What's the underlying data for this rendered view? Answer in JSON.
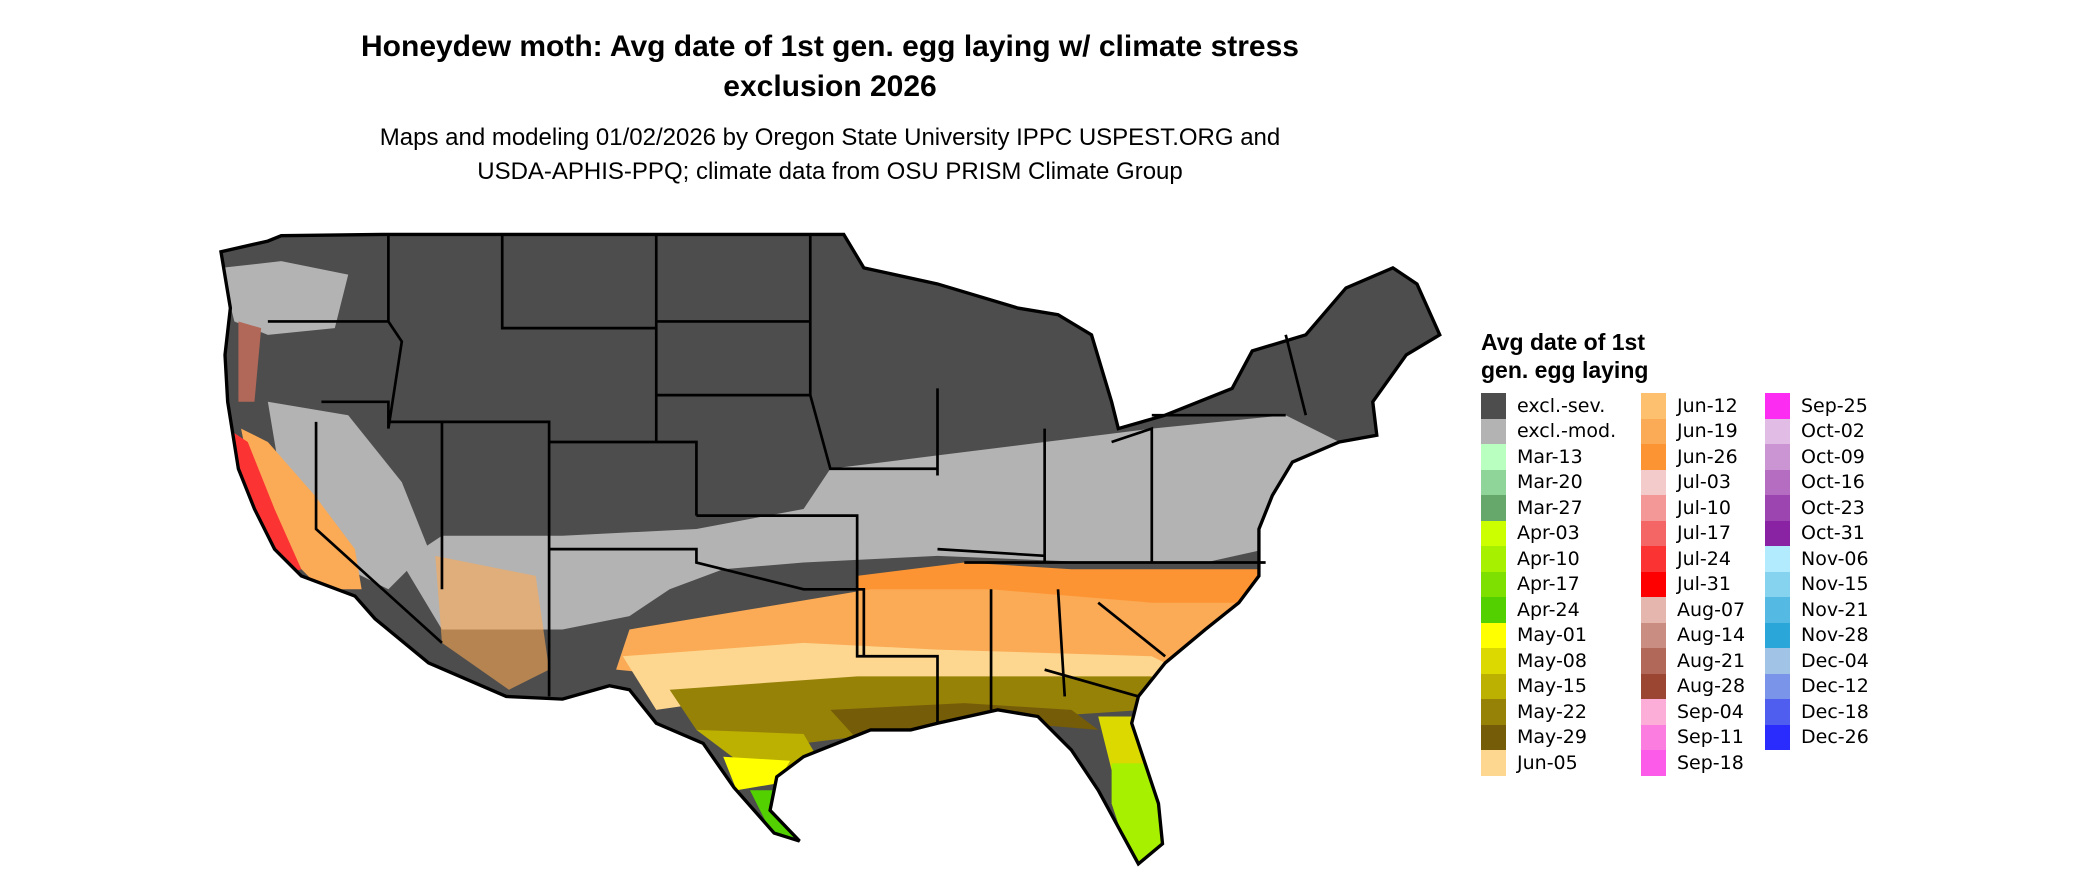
{
  "title": {
    "line1": "Honeydew moth: Avg date of 1st gen. egg laying w/ climate stress",
    "line2": "exclusion 2026"
  },
  "subtitle": {
    "line1": "Maps and modeling 01/02/2026 by Oregon State University IPPC USPEST.ORG and",
    "line2": "USDA-APHIS-PPQ; climate data from OSU PRISM Climate Group"
  },
  "legend": {
    "title_line1": "Avg date of 1st",
    "title_line2": "gen. egg laying",
    "columns": [
      [
        {
          "label": "excl.-sev.",
          "color": "#4d4d4d"
        },
        {
          "label": "excl.-mod.",
          "color": "#b3b3b3"
        },
        {
          "label": "Mar-13",
          "color": "#b8ffc0"
        },
        {
          "label": "Mar-20",
          "color": "#8fd499"
        },
        {
          "label": "Mar-27",
          "color": "#66a86b"
        },
        {
          "label": "Apr-03",
          "color": "#ccff00"
        },
        {
          "label": "Apr-10",
          "color": "#a6f000"
        },
        {
          "label": "Apr-17",
          "color": "#7ee000"
        },
        {
          "label": "Apr-24",
          "color": "#52d000"
        },
        {
          "label": "May-01",
          "color": "#ffff00"
        },
        {
          "label": "May-08",
          "color": "#dcd900"
        },
        {
          "label": "May-15",
          "color": "#bcb000"
        },
        {
          "label": "May-22",
          "color": "#978208"
        },
        {
          "label": "May-29",
          "color": "#755c08"
        },
        {
          "label": "Jun-05",
          "color": "#fdd78f"
        }
      ],
      [
        {
          "label": "Jun-12",
          "color": "#fdc06e"
        },
        {
          "label": "Jun-19",
          "color": "#fbaa55"
        },
        {
          "label": "Jun-26",
          "color": "#fc9433"
        },
        {
          "label": "Jul-03",
          "color": "#f3cbcb"
        },
        {
          "label": "Jul-10",
          "color": "#f39797"
        },
        {
          "label": "Jul-17",
          "color": "#f46666"
        },
        {
          "label": "Jul-24",
          "color": "#fc3333"
        },
        {
          "label": "Jul-31",
          "color": "#ff0000"
        },
        {
          "label": "Aug-07",
          "color": "#e4b6ae"
        },
        {
          "label": "Aug-14",
          "color": "#c98d82"
        },
        {
          "label": "Aug-21",
          "color": "#b26858"
        },
        {
          "label": "Aug-28",
          "color": "#9b4632"
        },
        {
          "label": "Sep-04",
          "color": "#fcaed8"
        },
        {
          "label": "Sep-11",
          "color": "#fc7de0"
        },
        {
          "label": "Sep-18",
          "color": "#fc5ae8"
        }
      ],
      [
        {
          "label": "Sep-25",
          "color": "#fd2cf2"
        },
        {
          "label": "Oct-02",
          "color": "#e1bde6"
        },
        {
          "label": "Oct-09",
          "color": "#cb94d2"
        },
        {
          "label": "Oct-16",
          "color": "#b56dc1"
        },
        {
          "label": "Oct-23",
          "color": "#9c45b0"
        },
        {
          "label": "Oct-31",
          "color": "#8a22a4"
        },
        {
          "label": "Nov-06",
          "color": "#b3ebfe"
        },
        {
          "label": "Nov-15",
          "color": "#86d3f0"
        },
        {
          "label": "Nov-21",
          "color": "#55bae3"
        },
        {
          "label": "Nov-28",
          "color": "#2aa6d8"
        },
        {
          "label": "Dec-04",
          "color": "#a0c3e6"
        },
        {
          "label": "Dec-12",
          "color": "#7a94ea"
        },
        {
          "label": "Dec-18",
          "color": "#505ef0"
        },
        {
          "label": "Dec-26",
          "color": "#2a2cfe"
        }
      ]
    ]
  }
}
